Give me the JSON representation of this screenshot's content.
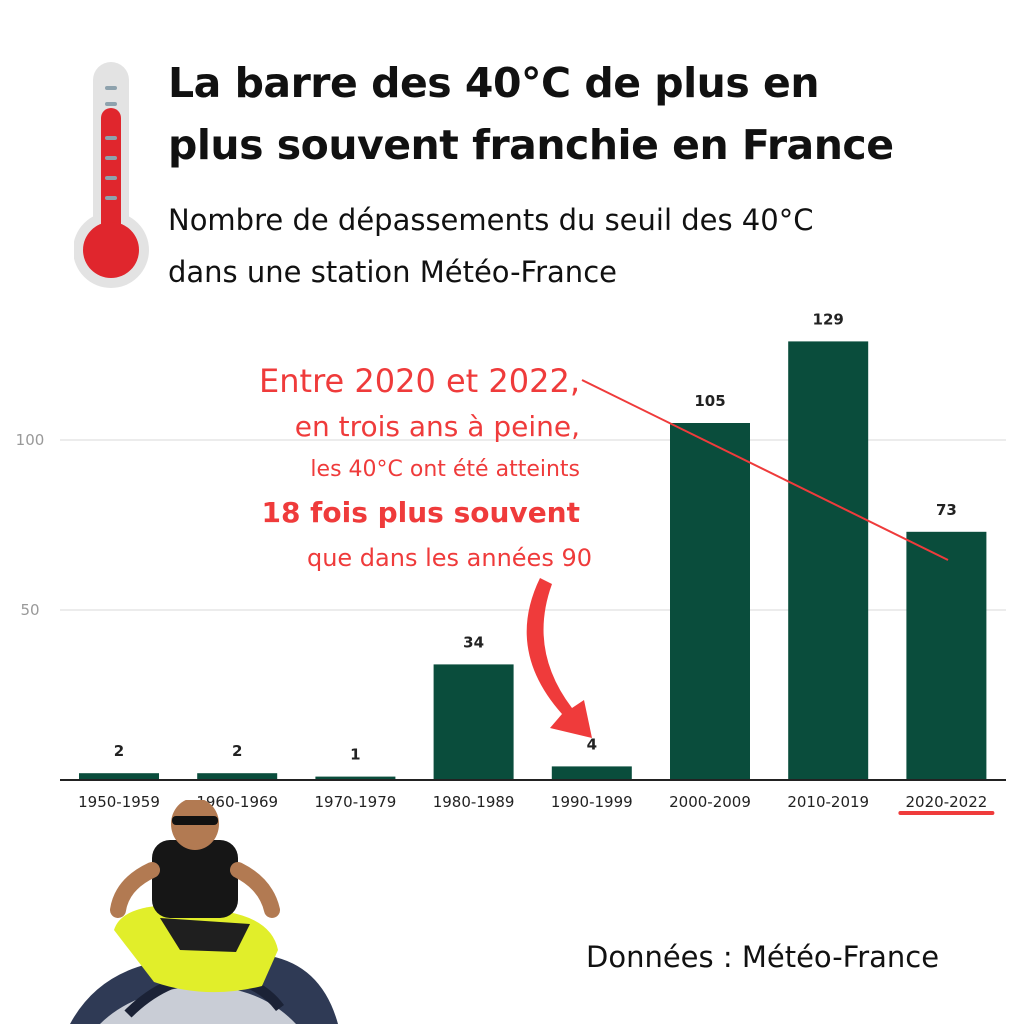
{
  "header": {
    "title_line1": "La barre des 40°C de plus en",
    "title_line2": "plus souvent franchie en France",
    "subtitle_line1": "Nombre de dépassements du seuil des 40°C",
    "subtitle_line2": "dans une station Météo-France"
  },
  "annotation": {
    "line1": "Entre 2020 et 2022,",
    "line2": "en trois ans à peine,",
    "line3": "les 40°C ont été atteints",
    "line4": "18 fois plus souvent",
    "line5": "que dans les années 90"
  },
  "footer": {
    "source": "Données : Météo-France"
  },
  "colors": {
    "bar": "#0a4d3c",
    "annotation": "#ef3b3b",
    "axis_text": "#999999",
    "title": "#111111"
  },
  "chart_data": {
    "type": "bar",
    "categories": [
      "1950-1959",
      "1960-1969",
      "1970-1979",
      "1980-1989",
      "1990-1999",
      "2000-2009",
      "2010-2019",
      "2020-2022"
    ],
    "values": [
      2,
      2,
      1,
      34,
      4,
      105,
      129,
      73
    ],
    "y_ticks": [
      "50",
      "100"
    ],
    "ylim": [
      0,
      140
    ],
    "grid": true,
    "highlighted_category": "2020-2022"
  }
}
